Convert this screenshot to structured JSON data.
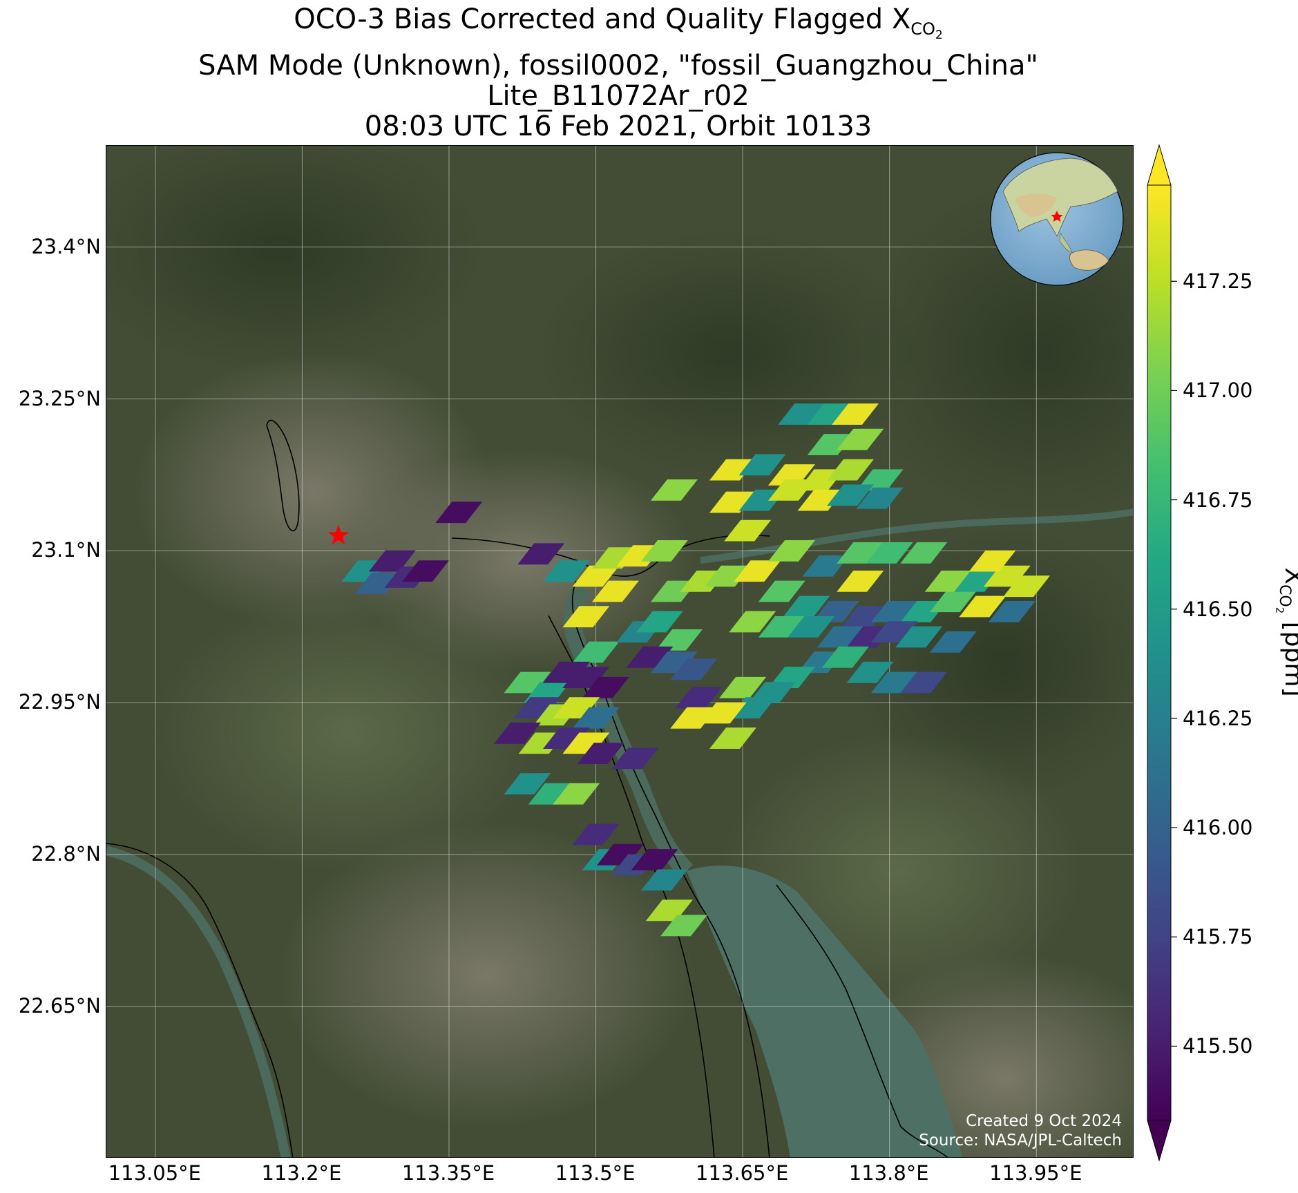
{
  "title": {
    "line1_prefix": "OCO-3 Bias Corrected and Quality Flagged X",
    "line1_sub": "CO",
    "line1_subsub": "2",
    "line2": "SAM Mode (Unknown), fossil0002, \"fossil_Guangzhou_China\"",
    "line3": "Lite_B11072Ar_r02",
    "line4": "08:03 UTC 16 Feb 2021, Orbit 10133"
  },
  "credit": {
    "created": "Created 9 Oct 2024",
    "source": "Source: NASA/JPL-Caltech"
  },
  "map": {
    "lon_range": [
      113.0,
      114.05
    ],
    "lat_range": [
      22.5,
      23.5
    ],
    "lon_ticks": [
      {
        "value": 113.05,
        "label": "113.05°E"
      },
      {
        "value": 113.2,
        "label": "113.2°E"
      },
      {
        "value": 113.35,
        "label": "113.35°E"
      },
      {
        "value": 113.5,
        "label": "113.5°E"
      },
      {
        "value": 113.65,
        "label": "113.65°E"
      },
      {
        "value": 113.8,
        "label": "113.8°E"
      },
      {
        "value": 113.95,
        "label": "113.95°E"
      }
    ],
    "lat_ticks": [
      {
        "value": 23.4,
        "label": "23.4°N"
      },
      {
        "value": 23.25,
        "label": "23.25°N"
      },
      {
        "value": 23.1,
        "label": "23.1°N"
      },
      {
        "value": 22.95,
        "label": "22.95°N"
      },
      {
        "value": 22.8,
        "label": "22.8°N"
      },
      {
        "value": 22.65,
        "label": "22.65°N"
      }
    ],
    "grid": true,
    "basemap": "satellite imagery",
    "target_marker": {
      "lon": 113.237,
      "lat": 23.115,
      "symbol": "star",
      "color": "#ff0000"
    },
    "inset": {
      "type": "globe",
      "marker_color": "#ff0000",
      "position": "top-right"
    }
  },
  "colorbar": {
    "label_prefix": "X",
    "label_sub": "CO",
    "label_subsub": "2",
    "label_suffix": " [ppm]",
    "range": [
      415.33,
      417.47
    ],
    "extend": "both",
    "colormap": "viridis",
    "ticks": [
      {
        "value": 415.5,
        "label": "415.50"
      },
      {
        "value": 415.75,
        "label": "415.75"
      },
      {
        "value": 416.0,
        "label": "416.00"
      },
      {
        "value": 416.25,
        "label": "416.25"
      },
      {
        "value": 416.5,
        "label": "416.50"
      },
      {
        "value": 416.75,
        "label": "416.75"
      },
      {
        "value": 417.0,
        "label": "417.00"
      },
      {
        "value": 417.25,
        "label": "417.25"
      }
    ]
  },
  "chart_data": {
    "type": "scatter",
    "title": "OCO-3 Bias Corrected and Quality Flagged XCO2",
    "xlabel": "",
    "ylabel": "",
    "value_label": "XCO2 [ppm]",
    "footprints": [
      {
        "lon": 113.264,
        "lat": 23.08,
        "xco2": 416.4
      },
      {
        "lon": 113.278,
        "lat": 23.068,
        "xco2": 416.0
      },
      {
        "lon": 113.292,
        "lat": 23.09,
        "xco2": 415.5
      },
      {
        "lon": 113.308,
        "lat": 23.074,
        "xco2": 415.6
      },
      {
        "lon": 113.326,
        "lat": 23.08,
        "xco2": 415.4
      },
      {
        "lon": 113.36,
        "lat": 23.138,
        "xco2": 415.4
      },
      {
        "lon": 113.444,
        "lat": 23.097,
        "xco2": 415.5
      },
      {
        "lon": 113.47,
        "lat": 23.08,
        "xco2": 416.4
      },
      {
        "lon": 113.5,
        "lat": 23.075,
        "xco2": 417.4
      },
      {
        "lon": 113.52,
        "lat": 23.093,
        "xco2": 417.2
      },
      {
        "lon": 113.545,
        "lat": 23.095,
        "xco2": 417.4
      },
      {
        "lon": 113.57,
        "lat": 23.1,
        "xco2": 417.1
      },
      {
        "lon": 113.52,
        "lat": 23.06,
        "xco2": 417.4
      },
      {
        "lon": 113.49,
        "lat": 23.035,
        "xco2": 417.4
      },
      {
        "lon": 113.5,
        "lat": 23.0,
        "xco2": 416.8
      },
      {
        "lon": 113.545,
        "lat": 23.02,
        "xco2": 416.3
      },
      {
        "lon": 113.565,
        "lat": 23.03,
        "xco2": 416.6
      },
      {
        "lon": 113.585,
        "lat": 23.012,
        "xco2": 416.9
      },
      {
        "lon": 113.555,
        "lat": 22.995,
        "xco2": 415.5
      },
      {
        "lon": 113.58,
        "lat": 22.99,
        "xco2": 416.0
      },
      {
        "lon": 113.6,
        "lat": 22.983,
        "xco2": 415.9
      },
      {
        "lon": 113.58,
        "lat": 23.06,
        "xco2": 417.0
      },
      {
        "lon": 113.61,
        "lat": 23.07,
        "xco2": 417.2
      },
      {
        "lon": 113.635,
        "lat": 23.075,
        "xco2": 417.1
      },
      {
        "lon": 113.665,
        "lat": 23.08,
        "xco2": 417.4
      },
      {
        "lon": 113.655,
        "lat": 23.12,
        "xco2": 417.3
      },
      {
        "lon": 113.58,
        "lat": 23.16,
        "xco2": 417.1
      },
      {
        "lon": 113.64,
        "lat": 23.18,
        "xco2": 417.4
      },
      {
        "lon": 113.67,
        "lat": 23.185,
        "xco2": 416.4
      },
      {
        "lon": 113.7,
        "lat": 23.175,
        "xco2": 417.4
      },
      {
        "lon": 113.64,
        "lat": 23.148,
        "xco2": 417.4
      },
      {
        "lon": 113.67,
        "lat": 23.15,
        "xco2": 416.4
      },
      {
        "lon": 113.7,
        "lat": 23.16,
        "xco2": 417.3
      },
      {
        "lon": 113.73,
        "lat": 23.17,
        "xco2": 417.3
      },
      {
        "lon": 113.76,
        "lat": 23.18,
        "xco2": 417.2
      },
      {
        "lon": 113.79,
        "lat": 23.17,
        "xco2": 416.8
      },
      {
        "lon": 113.73,
        "lat": 23.15,
        "xco2": 417.4
      },
      {
        "lon": 113.76,
        "lat": 23.155,
        "xco2": 416.4
      },
      {
        "lon": 113.79,
        "lat": 23.152,
        "xco2": 416.3
      },
      {
        "lon": 113.74,
        "lat": 23.205,
        "xco2": 416.9
      },
      {
        "lon": 113.77,
        "lat": 23.21,
        "xco2": 417.1
      },
      {
        "lon": 113.71,
        "lat": 23.235,
        "xco2": 416.4
      },
      {
        "lon": 113.74,
        "lat": 23.235,
        "xco2": 416.6
      },
      {
        "lon": 113.765,
        "lat": 23.235,
        "xco2": 417.4
      },
      {
        "lon": 113.7,
        "lat": 23.1,
        "xco2": 417.1
      },
      {
        "lon": 113.735,
        "lat": 23.085,
        "xco2": 416.2
      },
      {
        "lon": 113.77,
        "lat": 23.098,
        "xco2": 416.9
      },
      {
        "lon": 113.77,
        "lat": 23.07,
        "xco2": 417.4
      },
      {
        "lon": 113.8,
        "lat": 23.098,
        "xco2": 416.8
      },
      {
        "lon": 113.835,
        "lat": 23.098,
        "xco2": 416.9
      },
      {
        "lon": 113.69,
        "lat": 23.06,
        "xco2": 416.9
      },
      {
        "lon": 113.715,
        "lat": 23.045,
        "xco2": 416.5
      },
      {
        "lon": 113.745,
        "lat": 23.04,
        "xco2": 416.0
      },
      {
        "lon": 113.775,
        "lat": 23.035,
        "xco2": 415.8
      },
      {
        "lon": 113.805,
        "lat": 23.04,
        "xco2": 416.1
      },
      {
        "lon": 113.835,
        "lat": 23.04,
        "xco2": 416.6
      },
      {
        "lon": 113.865,
        "lat": 23.05,
        "xco2": 416.9
      },
      {
        "lon": 113.895,
        "lat": 23.045,
        "xco2": 417.4
      },
      {
        "lon": 113.925,
        "lat": 23.04,
        "xco2": 416.1
      },
      {
        "lon": 113.86,
        "lat": 23.07,
        "xco2": 417.1
      },
      {
        "lon": 113.89,
        "lat": 23.07,
        "xco2": 416.6
      },
      {
        "lon": 113.92,
        "lat": 23.075,
        "xco2": 417.3
      },
      {
        "lon": 113.905,
        "lat": 23.09,
        "xco2": 417.4
      },
      {
        "lon": 113.94,
        "lat": 23.065,
        "xco2": 417.3
      },
      {
        "lon": 113.66,
        "lat": 23.03,
        "xco2": 417.1
      },
      {
        "lon": 113.69,
        "lat": 23.025,
        "xco2": 416.8
      },
      {
        "lon": 113.72,
        "lat": 23.025,
        "xco2": 416.4
      },
      {
        "lon": 113.75,
        "lat": 23.015,
        "xco2": 416.1
      },
      {
        "lon": 113.78,
        "lat": 23.015,
        "xco2": 415.6
      },
      {
        "lon": 113.805,
        "lat": 23.02,
        "xco2": 415.8
      },
      {
        "lon": 113.83,
        "lat": 23.015,
        "xco2": 416.4
      },
      {
        "lon": 113.865,
        "lat": 23.01,
        "xco2": 416.1
      },
      {
        "lon": 113.73,
        "lat": 22.99,
        "xco2": 416.2
      },
      {
        "lon": 113.755,
        "lat": 22.995,
        "xco2": 416.7
      },
      {
        "lon": 113.78,
        "lat": 22.98,
        "xco2": 416.4
      },
      {
        "lon": 113.805,
        "lat": 22.97,
        "xco2": 416.2
      },
      {
        "lon": 113.835,
        "lat": 22.97,
        "xco2": 415.8
      },
      {
        "lon": 113.7,
        "lat": 22.975,
        "xco2": 416.6
      },
      {
        "lon": 113.68,
        "lat": 22.96,
        "xco2": 416.4
      },
      {
        "lon": 113.65,
        "lat": 22.965,
        "xco2": 417.1
      },
      {
        "lon": 113.66,
        "lat": 22.945,
        "xco2": 416.4
      },
      {
        "lon": 113.605,
        "lat": 22.955,
        "xco2": 415.6
      },
      {
        "lon": 113.63,
        "lat": 22.94,
        "xco2": 417.4
      },
      {
        "lon": 113.6,
        "lat": 22.935,
        "xco2": 417.4
      },
      {
        "lon": 113.64,
        "lat": 22.915,
        "xco2": 417.2
      },
      {
        "lon": 113.43,
        "lat": 22.97,
        "xco2": 416.9
      },
      {
        "lon": 113.45,
        "lat": 22.96,
        "xco2": 416.6
      },
      {
        "lon": 113.47,
        "lat": 22.98,
        "xco2": 415.5
      },
      {
        "lon": 113.49,
        "lat": 22.975,
        "xco2": 415.5
      },
      {
        "lon": 113.51,
        "lat": 22.965,
        "xco2": 415.4
      },
      {
        "lon": 113.44,
        "lat": 22.945,
        "xco2": 415.7
      },
      {
        "lon": 113.46,
        "lat": 22.938,
        "xco2": 417.2
      },
      {
        "lon": 113.48,
        "lat": 22.945,
        "xco2": 417.3
      },
      {
        "lon": 113.5,
        "lat": 22.935,
        "xco2": 416.1
      },
      {
        "lon": 113.42,
        "lat": 22.92,
        "xco2": 415.5
      },
      {
        "lon": 113.445,
        "lat": 22.91,
        "xco2": 417.2
      },
      {
        "lon": 113.47,
        "lat": 22.915,
        "xco2": 415.6
      },
      {
        "lon": 113.49,
        "lat": 22.91,
        "xco2": 417.4
      },
      {
        "lon": 113.505,
        "lat": 22.9,
        "xco2": 415.5
      },
      {
        "lon": 113.54,
        "lat": 22.895,
        "xco2": 415.6
      },
      {
        "lon": 113.43,
        "lat": 22.87,
        "xco2": 416.4
      },
      {
        "lon": 113.455,
        "lat": 22.86,
        "xco2": 416.7
      },
      {
        "lon": 113.48,
        "lat": 22.86,
        "xco2": 417.1
      },
      {
        "lon": 113.5,
        "lat": 22.82,
        "xco2": 415.6
      },
      {
        "lon": 113.51,
        "lat": 22.795,
        "xco2": 416.4
      },
      {
        "lon": 113.525,
        "lat": 22.8,
        "xco2": 415.4
      },
      {
        "lon": 113.54,
        "lat": 22.79,
        "xco2": 415.8
      },
      {
        "lon": 113.56,
        "lat": 22.795,
        "xco2": 415.4
      },
      {
        "lon": 113.57,
        "lat": 22.775,
        "xco2": 416.3
      },
      {
        "lon": 113.575,
        "lat": 22.745,
        "xco2": 417.2
      },
      {
        "lon": 113.59,
        "lat": 22.73,
        "xco2": 417.0
      }
    ]
  }
}
